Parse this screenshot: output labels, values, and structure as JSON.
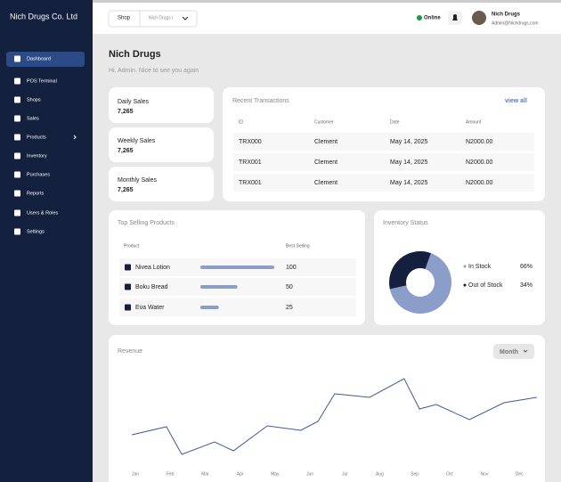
{
  "sidebar": {
    "brand": "Nich Drugs Co. Ltd",
    "items": [
      "Dashboard",
      "POS Terminal",
      "Shops",
      "Sales",
      "Products",
      "Inventory",
      "Purchases",
      "Reports",
      "Users & Roles",
      "Settings"
    ]
  },
  "topbar": {
    "shop_label": "Shop",
    "shop_value": "Nich Drugs I",
    "status": "Online",
    "user_name": "Nich Drugs",
    "user_email": "Admin@Nichdrugs.com"
  },
  "header": {
    "title": "Nich Drugs",
    "subtitle": "Hi, Admin. Nice to see you again"
  },
  "stats": [
    {
      "label": "Daily Sales",
      "value": "7,265"
    },
    {
      "label": "Weekly Sales",
      "value": "7,265"
    },
    {
      "label": "Monthly Sales",
      "value": "7,265"
    }
  ],
  "transactions": {
    "title": "Recent Transactions",
    "link": "view all",
    "columns": [
      "ID",
      "Customer",
      "Date",
      "Amount"
    ],
    "rows": [
      [
        "TRX000",
        "Clement",
        "May 14, 2025",
        "N2000.00"
      ],
      [
        "TRX001",
        "Clement",
        "May 14, 2025",
        "N2000.00"
      ],
      [
        "TRX001",
        "Clement",
        "May 14, 2025",
        "N2000.00"
      ]
    ]
  },
  "top_selling": {
    "title": "Top Selling Products",
    "columns": [
      "Product",
      "Best-Selling"
    ],
    "products": [
      "Nivea Lotion",
      "Boku Bread",
      "Eva Water"
    ],
    "values": [
      100,
      50,
      25
    ],
    "color": "#8b9dc9"
  },
  "inventory": {
    "title": "Inventory Status",
    "type": "pie",
    "categories": [
      "In Stock",
      "Out of Stock"
    ],
    "values": [
      66,
      34
    ],
    "value_labels": [
      "66%",
      "34%"
    ],
    "colors": [
      "#8b9dc9",
      "#15203f"
    ]
  },
  "revenue": {
    "title": "Revenue",
    "period": "Month",
    "type": "line",
    "categories": [
      "Jan",
      "Feb",
      "Mar",
      "Apr",
      "May",
      "Jun",
      "Jul",
      "Aug",
      "Sep",
      "Oct",
      "Nov",
      "Dec"
    ],
    "x": [
      -0.1,
      0.89,
      1.33,
      2.27,
      2.81,
      3.78,
      4.74,
      5.23,
      5.71,
      6.71,
      7.7,
      8.14,
      8.62,
      9.57,
      10.56,
      11.5
    ],
    "values": [
      32,
      41,
      10,
      24,
      14,
      42,
      37,
      47,
      78,
      74,
      95,
      61,
      66,
      49,
      68,
      74
    ],
    "color": "#3e5a94"
  }
}
